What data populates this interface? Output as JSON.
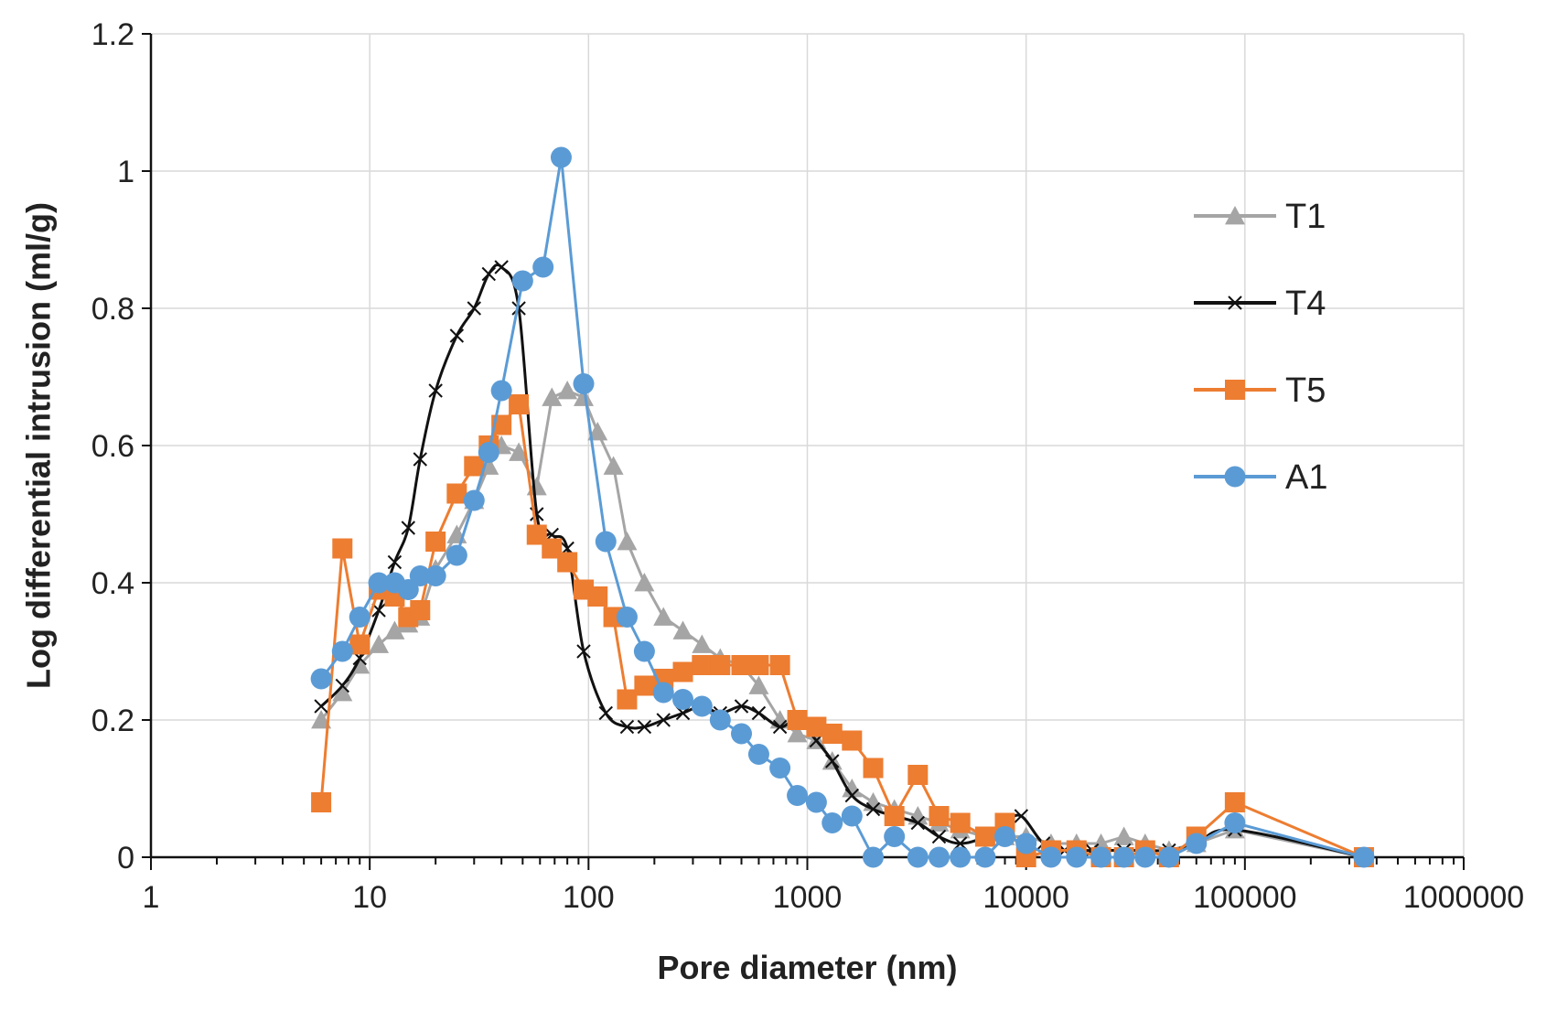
{
  "chart_data": {
    "type": "line",
    "title": "",
    "xlabel": "Pore diameter (nm)",
    "ylabel": "Log differential intrusion (ml/g)",
    "xscale": "log",
    "xlim": [
      1,
      1000000
    ],
    "ylim": [
      0,
      1.2
    ],
    "x_ticks": [
      1,
      10,
      100,
      1000,
      10000,
      100000,
      1000000
    ],
    "x_tick_labels": [
      "1",
      "10",
      "100",
      "1000",
      "10000",
      "100000",
      "1000000"
    ],
    "y_ticks": [
      0,
      0.2,
      0.4,
      0.6,
      0.8,
      1.0,
      1.2
    ],
    "y_tick_labels": [
      "0",
      "0.2",
      "0.4",
      "0.6",
      "0.8",
      "1",
      "1.2"
    ],
    "grid": true,
    "legend_position": "right",
    "series": [
      {
        "name": "T1",
        "color": "#a5a5a5",
        "marker": "triangle",
        "smooth": false,
        "x": [
          6,
          7.5,
          9,
          11,
          13,
          15,
          17,
          20,
          25,
          30,
          35,
          40,
          48,
          58,
          68,
          80,
          95,
          110,
          130,
          150,
          180,
          220,
          270,
          330,
          400,
          500,
          600,
          750,
          900,
          1100,
          1300,
          1600,
          2000,
          2500,
          3200,
          4000,
          5000,
          6500,
          8000,
          10000,
          13000,
          17000,
          22000,
          28000,
          35000,
          45000,
          60000,
          90000,
          350000
        ],
        "y": [
          0.2,
          0.24,
          0.28,
          0.31,
          0.33,
          0.34,
          0.35,
          0.42,
          0.47,
          0.52,
          0.57,
          0.6,
          0.59,
          0.54,
          0.67,
          0.68,
          0.67,
          0.62,
          0.57,
          0.46,
          0.4,
          0.35,
          0.33,
          0.31,
          0.29,
          0.28,
          0.25,
          0.2,
          0.18,
          0.17,
          0.14,
          0.1,
          0.08,
          0.07,
          0.06,
          0.05,
          0.04,
          0.03,
          0.03,
          0.03,
          0.02,
          0.02,
          0.02,
          0.03,
          0.02,
          0.01,
          0.02,
          0.04,
          0.0
        ]
      },
      {
        "name": "T4",
        "color": "#111111",
        "marker": "x",
        "smooth": true,
        "x": [
          6,
          7.5,
          9,
          11,
          13,
          15,
          17,
          20,
          25,
          30,
          35,
          40,
          48,
          58,
          68,
          80,
          95,
          120,
          150,
          180,
          220,
          270,
          330,
          400,
          500,
          600,
          750,
          900,
          1100,
          1300,
          1600,
          2000,
          2500,
          3200,
          4000,
          5000,
          6500,
          8000,
          9500,
          12000,
          15000,
          20000,
          28000,
          35000,
          45000,
          60000,
          90000,
          350000
        ],
        "y": [
          0.22,
          0.25,
          0.29,
          0.36,
          0.43,
          0.48,
          0.58,
          0.68,
          0.76,
          0.8,
          0.85,
          0.86,
          0.8,
          0.5,
          0.47,
          0.45,
          0.3,
          0.21,
          0.19,
          0.19,
          0.2,
          0.21,
          0.22,
          0.21,
          0.22,
          0.21,
          0.19,
          0.2,
          0.17,
          0.14,
          0.09,
          0.07,
          0.06,
          0.05,
          0.03,
          0.02,
          0.03,
          0.05,
          0.06,
          0.02,
          0.01,
          0.01,
          0.01,
          0.01,
          0.01,
          0.02,
          0.04,
          0.0
        ]
      },
      {
        "name": "T5",
        "color": "#ed7d31",
        "marker": "square",
        "smooth": false,
        "x": [
          6,
          7.5,
          9,
          11,
          13,
          15,
          17,
          20,
          25,
          30,
          35,
          40,
          48,
          58,
          68,
          80,
          95,
          110,
          130,
          150,
          180,
          220,
          270,
          330,
          400,
          500,
          600,
          750,
          900,
          1100,
          1300,
          1600,
          2000,
          2500,
          3200,
          4000,
          5000,
          6500,
          8000,
          10000,
          13000,
          17000,
          22000,
          28000,
          35000,
          45000,
          60000,
          90000,
          350000
        ],
        "y": [
          0.08,
          0.45,
          0.31,
          0.39,
          0.38,
          0.35,
          0.36,
          0.46,
          0.53,
          0.57,
          0.6,
          0.63,
          0.66,
          0.47,
          0.45,
          0.43,
          0.39,
          0.38,
          0.35,
          0.23,
          0.25,
          0.26,
          0.27,
          0.28,
          0.28,
          0.28,
          0.28,
          0.28,
          0.2,
          0.19,
          0.18,
          0.17,
          0.13,
          0.06,
          0.12,
          0.06,
          0.05,
          0.03,
          0.05,
          0.0,
          0.01,
          0.01,
          0.0,
          0.0,
          0.01,
          0.0,
          0.03,
          0.08,
          0.0
        ]
      },
      {
        "name": "A1",
        "color": "#5b9bd5",
        "marker": "circle",
        "smooth": false,
        "x": [
          6,
          7.5,
          9,
          11,
          13,
          15,
          17,
          20,
          25,
          30,
          35,
          40,
          50,
          62,
          75,
          95,
          120,
          150,
          180,
          220,
          270,
          330,
          400,
          500,
          600,
          750,
          900,
          1100,
          1300,
          1600,
          2000,
          2500,
          3200,
          4000,
          5000,
          6500,
          8000,
          10000,
          13000,
          17000,
          22000,
          28000,
          35000,
          45000,
          60000,
          90000,
          350000
        ],
        "y": [
          0.26,
          0.3,
          0.35,
          0.4,
          0.4,
          0.39,
          0.41,
          0.41,
          0.44,
          0.52,
          0.59,
          0.68,
          0.84,
          0.86,
          1.02,
          0.69,
          0.46,
          0.35,
          0.3,
          0.24,
          0.23,
          0.22,
          0.2,
          0.18,
          0.15,
          0.13,
          0.09,
          0.08,
          0.05,
          0.06,
          0.0,
          0.03,
          0.0,
          0.0,
          0.0,
          0.0,
          0.03,
          0.02,
          0.0,
          0.0,
          0.0,
          0.0,
          0.0,
          0.0,
          0.02,
          0.05,
          0.0
        ]
      }
    ]
  }
}
